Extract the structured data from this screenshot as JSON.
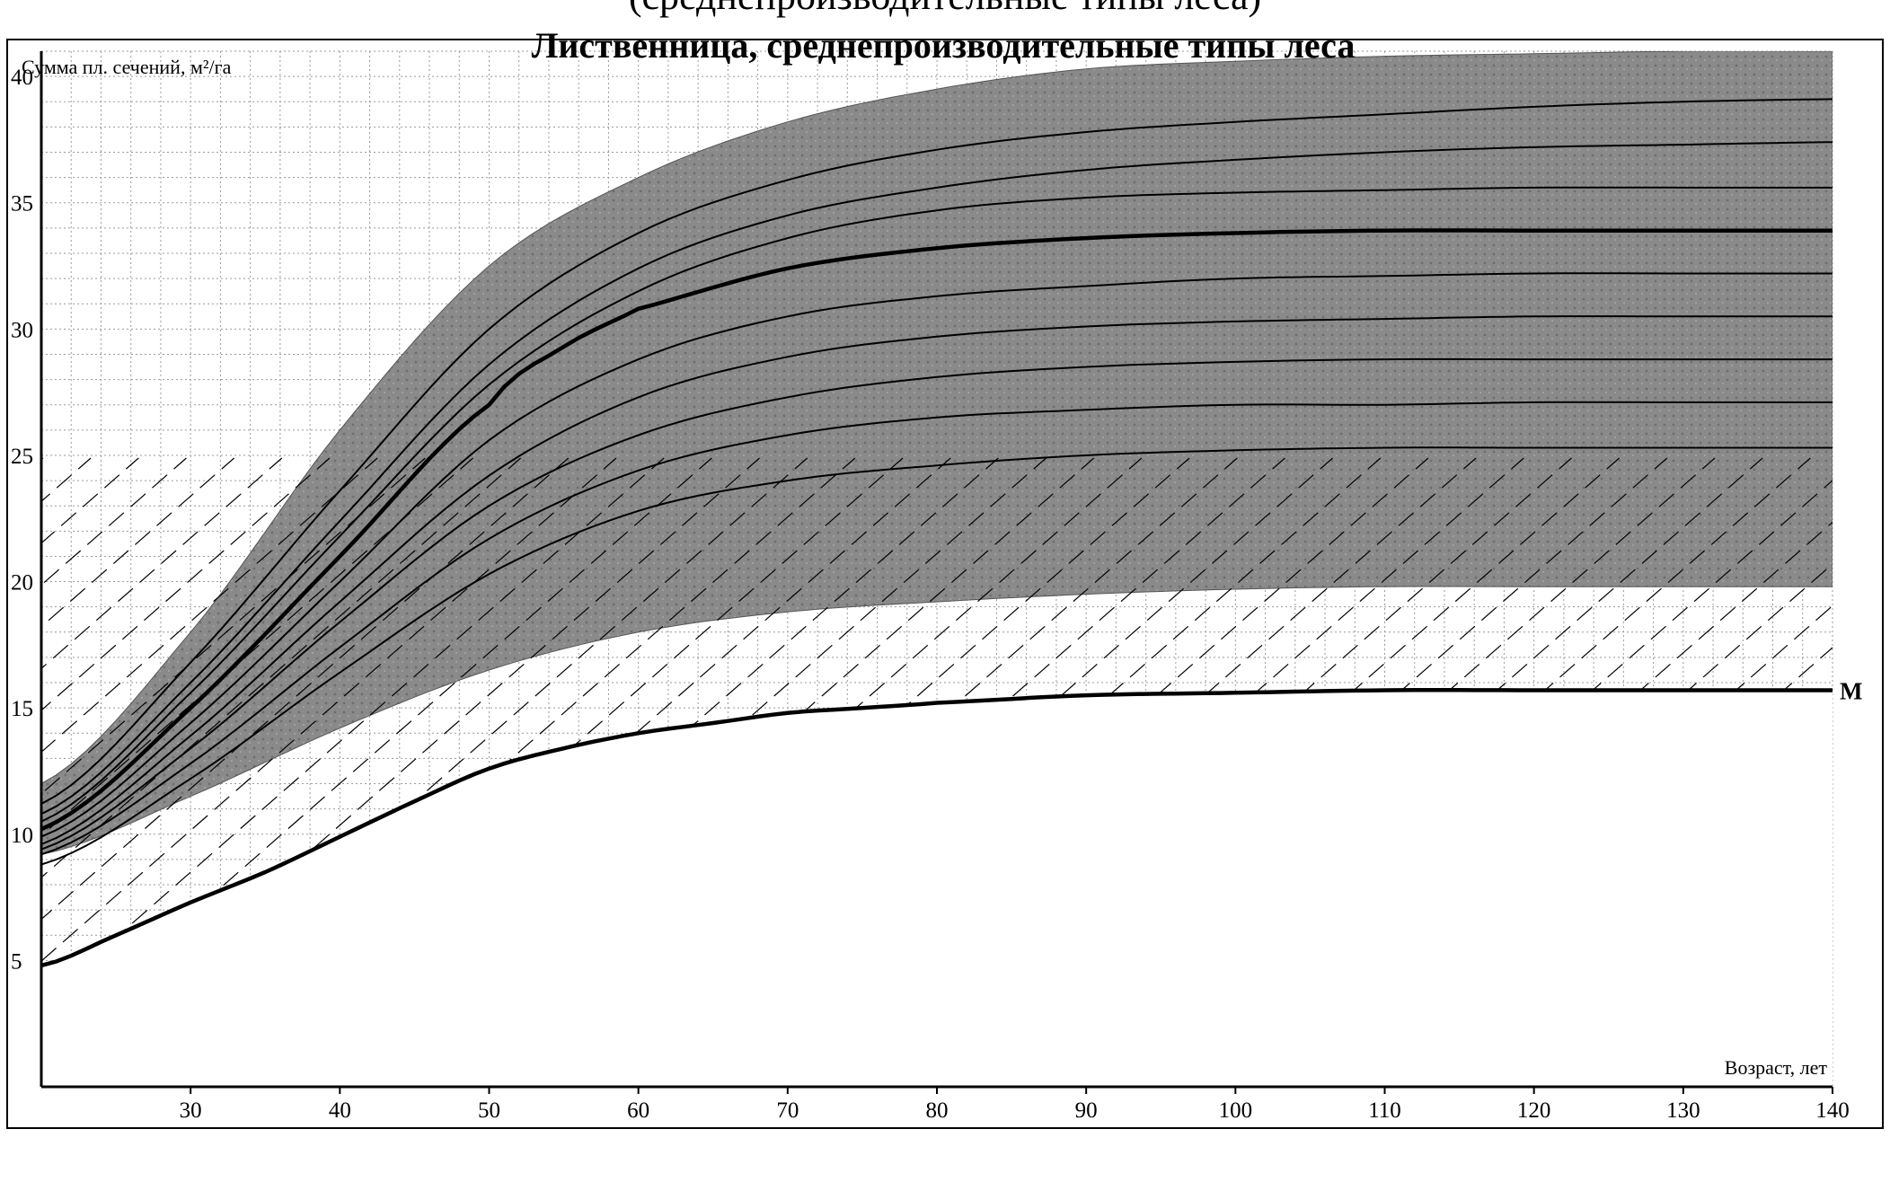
{
  "top_caption": "(среднепроизводительные типы леса)",
  "chart_data": {
    "type": "line",
    "title": "Лиственница, среднепроизводительные типы леса",
    "xlabel": "Возраст, лет",
    "ylabel": "Сумма пл. сечений, м²/га",
    "xlim": [
      20,
      140
    ],
    "ylim": [
      0,
      41
    ],
    "x_ticks": [
      30,
      40,
      50,
      60,
      70,
      80,
      90,
      100,
      110,
      120,
      130,
      140
    ],
    "y_ticks": [
      5,
      10,
      15,
      20,
      25,
      30,
      35,
      40
    ],
    "grid": true,
    "grid_minor_step": 2,
    "colors": {
      "band": "#8a8a8a",
      "lines": "#000000",
      "grid": "#9a9a9a"
    },
    "band": {
      "name": "shaded band",
      "upper": {
        "x": [
          20,
          30,
          40,
          50,
          60,
          70,
          80,
          90,
          100,
          110,
          120,
          130,
          140
        ],
        "y": [
          12.0,
          18.0,
          26.0,
          32.5,
          36.0,
          38.2,
          39.5,
          40.3,
          40.6,
          40.8,
          40.9,
          41.0,
          41.0
        ]
      },
      "lower": {
        "x": [
          20,
          30,
          40,
          50,
          60,
          70,
          80,
          90,
          100,
          110,
          120,
          130,
          140
        ],
        "y": [
          9.2,
          11.5,
          14.2,
          16.5,
          18.0,
          18.8,
          19.2,
          19.5,
          19.7,
          19.8,
          19.8,
          19.8,
          19.8
        ]
      }
    },
    "series": [
      {
        "name": "M",
        "bold": true,
        "x": [
          20,
          25,
          30,
          35,
          40,
          45,
          50,
          55,
          60,
          65,
          70,
          75,
          80,
          90,
          100,
          110,
          120,
          130,
          140
        ],
        "y": [
          4.8,
          6.0,
          7.3,
          8.5,
          9.9,
          11.3,
          12.6,
          13.4,
          14.0,
          14.4,
          14.8,
          15.0,
          15.2,
          15.5,
          15.6,
          15.7,
          15.7,
          15.7,
          15.7
        ]
      },
      {
        "bold": true,
        "x": [
          20,
          30,
          40,
          50,
          55,
          60,
          70,
          80,
          90,
          100,
          110,
          120,
          130,
          140
        ],
        "y": [
          10.2,
          15.0,
          21.0,
          27.0,
          29.3,
          30.8,
          32.4,
          33.2,
          33.6,
          33.8,
          33.9,
          33.9,
          33.9,
          33.9
        ]
      },
      {
        "x": [
          20,
          30,
          40,
          50,
          60,
          70,
          80,
          90,
          100,
          110,
          120,
          130,
          140
        ],
        "y": [
          11.2,
          16.8,
          23.6,
          30.0,
          33.8,
          35.9,
          37.1,
          37.8,
          38.2,
          38.5,
          38.8,
          39.0,
          39.1
        ]
      },
      {
        "x": [
          20,
          30,
          40,
          50,
          60,
          70,
          80,
          90,
          100,
          110,
          120,
          130,
          140
        ],
        "y": [
          10.8,
          16.0,
          22.4,
          28.6,
          32.4,
          34.5,
          35.6,
          36.3,
          36.7,
          37.0,
          37.2,
          37.3,
          37.4
        ]
      },
      {
        "x": [
          20,
          30,
          40,
          50,
          60,
          70,
          80,
          90,
          100,
          110,
          120,
          130,
          140
        ],
        "y": [
          10.5,
          15.6,
          21.8,
          27.8,
          31.5,
          33.6,
          34.7,
          35.2,
          35.4,
          35.5,
          35.6,
          35.6,
          35.6
        ]
      },
      {
        "x": [
          20,
          30,
          40,
          50,
          60,
          70,
          80,
          90,
          100,
          110,
          120,
          130,
          140
        ],
        "y": [
          9.9,
          14.4,
          20.0,
          25.6,
          28.8,
          30.5,
          31.3,
          31.7,
          32.0,
          32.1,
          32.2,
          32.2,
          32.2
        ]
      },
      {
        "x": [
          20,
          30,
          40,
          50,
          60,
          70,
          80,
          90,
          100,
          110,
          120,
          130,
          140
        ],
        "y": [
          9.6,
          13.9,
          19.2,
          24.2,
          27.3,
          28.9,
          29.7,
          30.1,
          30.3,
          30.4,
          30.5,
          30.5,
          30.5
        ]
      },
      {
        "x": [
          20,
          30,
          40,
          50,
          60,
          70,
          80,
          90,
          100,
          110,
          120,
          130,
          140
        ],
        "y": [
          9.4,
          13.4,
          18.4,
          23.0,
          25.8,
          27.3,
          28.1,
          28.5,
          28.7,
          28.8,
          28.8,
          28.8,
          28.8
        ]
      },
      {
        "x": [
          20,
          30,
          40,
          50,
          60,
          70,
          80,
          90,
          100,
          110,
          120,
          130,
          140
        ],
        "y": [
          9.2,
          12.8,
          17.4,
          21.7,
          24.4,
          25.8,
          26.5,
          26.8,
          27.0,
          27.0,
          27.1,
          27.1,
          27.1
        ]
      },
      {
        "x": [
          20,
          30,
          40,
          50,
          60,
          70,
          80,
          90,
          100,
          110,
          120,
          130,
          140
        ],
        "y": [
          8.8,
          12.2,
          16.4,
          20.3,
          22.8,
          24.0,
          24.6,
          25.0,
          25.2,
          25.3,
          25.3,
          25.3,
          25.3
        ]
      }
    ],
    "annotations": [
      {
        "text": "M",
        "x": 140,
        "y": 15.7
      }
    ]
  }
}
